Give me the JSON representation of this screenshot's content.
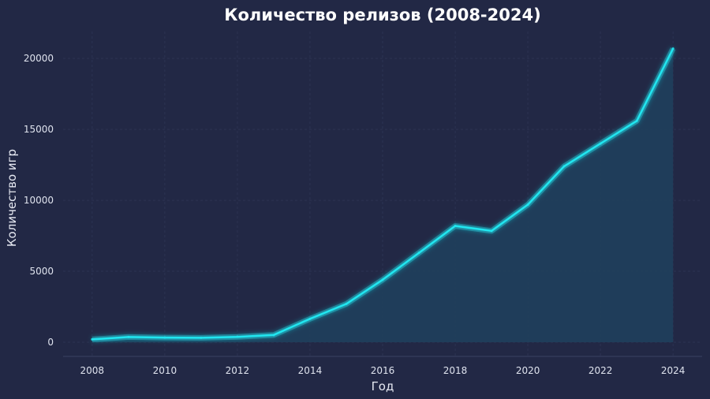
{
  "chart_data": {
    "type": "area",
    "title": "Количество релизов (2008-2024)",
    "xlabel": "Год",
    "ylabel": "Количество игр",
    "x": [
      2008,
      2009,
      2010,
      2011,
      2012,
      2013,
      2014,
      2015,
      2016,
      2017,
      2018,
      2019,
      2020,
      2021,
      2022,
      2023,
      2024
    ],
    "series": [
      {
        "values": [
          200,
          370,
          330,
          310,
          380,
          510,
          1650,
          2700,
          4400,
          6300,
          8200,
          7850,
          9700,
          12400,
          14000,
          15600,
          20700
        ]
      }
    ],
    "xlim": [
      2007.2,
      2024.8
    ],
    "ylim": [
      -1000,
      21900
    ],
    "xticks": [
      2008,
      2010,
      2012,
      2014,
      2016,
      2018,
      2020,
      2022,
      2024
    ],
    "yticks": [
      0,
      5000,
      10000,
      15000,
      20000
    ],
    "grid": true,
    "colors": {
      "background": "#222845",
      "line": "#21e6f0",
      "fill": "#1f3f5c",
      "grid": "#2c3352",
      "axis": "#3a4262"
    }
  }
}
